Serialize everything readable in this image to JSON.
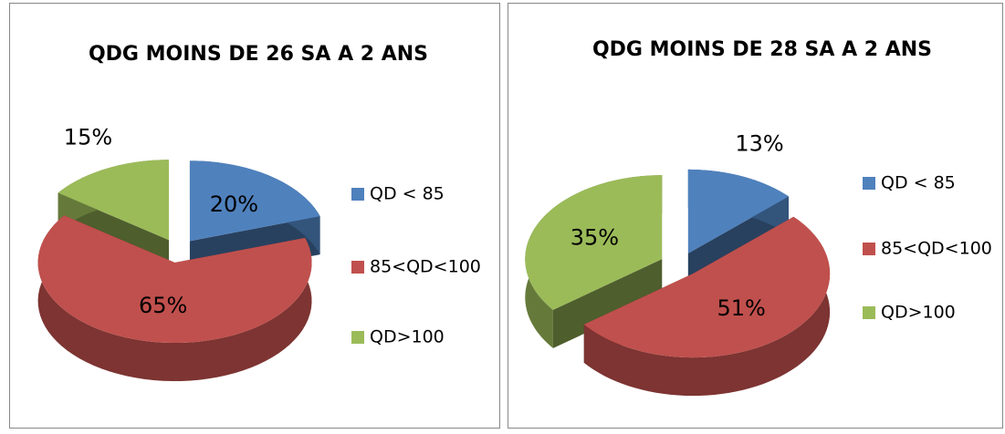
{
  "chart_data": [
    {
      "type": "pie",
      "title": "QDG MOINS DE 26 SA A 2 ANS",
      "categories": [
        "QD < 85",
        "85<QD<100",
        "QD>100"
      ],
      "values": [
        20,
        65,
        15
      ],
      "value_labels": [
        "20%",
        "65%",
        "15%"
      ],
      "colors": [
        "#4f81bd",
        "#c0504d",
        "#9bbb59"
      ],
      "legend": "right"
    },
    {
      "type": "pie",
      "title": "QDG MOINS DE 28 SA A 2 ANS",
      "categories": [
        "QD < 85",
        "85<QD<100",
        "QD>100"
      ],
      "values": [
        13,
        51,
        35
      ],
      "value_labels": [
        "13%",
        "51%",
        "35%"
      ],
      "colors": [
        "#4f81bd",
        "#c0504d",
        "#9bbb59"
      ],
      "legend": "right"
    }
  ]
}
